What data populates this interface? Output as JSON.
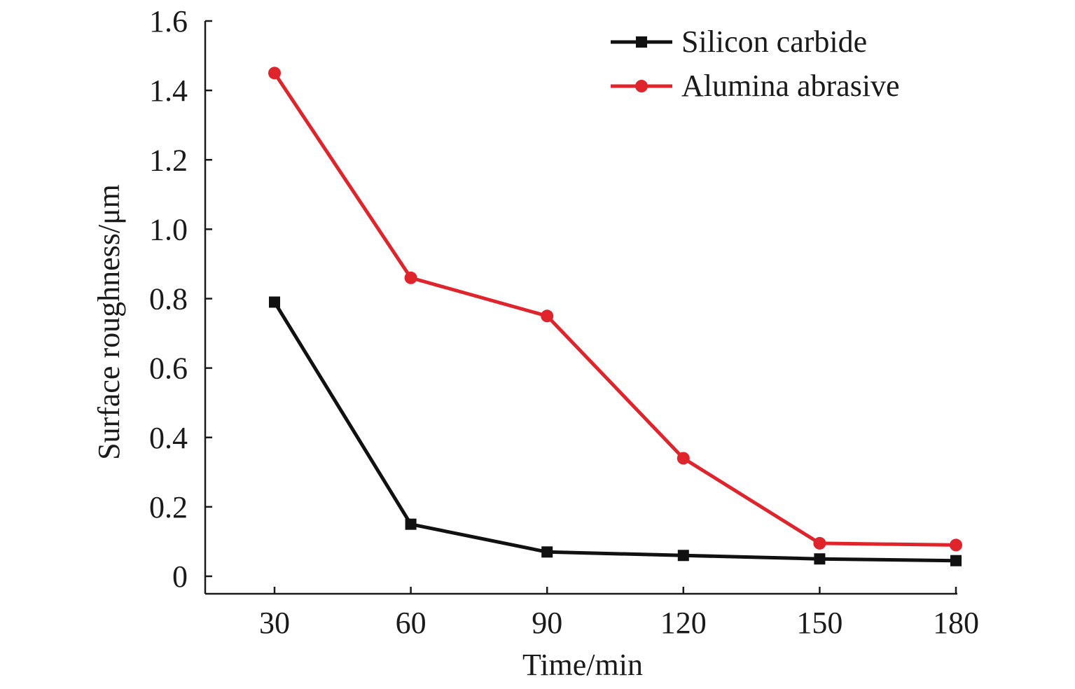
{
  "chart_data": {
    "type": "line",
    "title": "",
    "xlabel": "Time/min",
    "ylabel": "Surface roughness/μm",
    "x": [
      30,
      60,
      90,
      120,
      150,
      180
    ],
    "x_tick_labels": [
      "30",
      "60",
      "90",
      "120",
      "150",
      "180"
    ],
    "y_ticks": [
      0,
      0.2,
      0.4,
      0.6,
      0.8,
      1.0,
      1.2,
      1.4,
      1.6
    ],
    "y_tick_labels": [
      "0",
      "0.2",
      "0.4",
      "0.6",
      "0.8",
      "1.0",
      "1.2",
      "1.4",
      "1.6"
    ],
    "ylim": [
      0,
      1.6
    ],
    "grid": false,
    "legend_position": "top-right",
    "series": [
      {
        "name": "Silicon carbide",
        "color": "#111111",
        "marker": "square",
        "values": [
          0.79,
          0.15,
          0.07,
          0.06,
          0.05,
          0.045
        ]
      },
      {
        "name": "Alumina abrasive",
        "color": "#e0242c",
        "marker": "circle",
        "values": [
          1.45,
          0.86,
          0.75,
          0.34,
          0.095,
          0.09
        ]
      }
    ]
  }
}
